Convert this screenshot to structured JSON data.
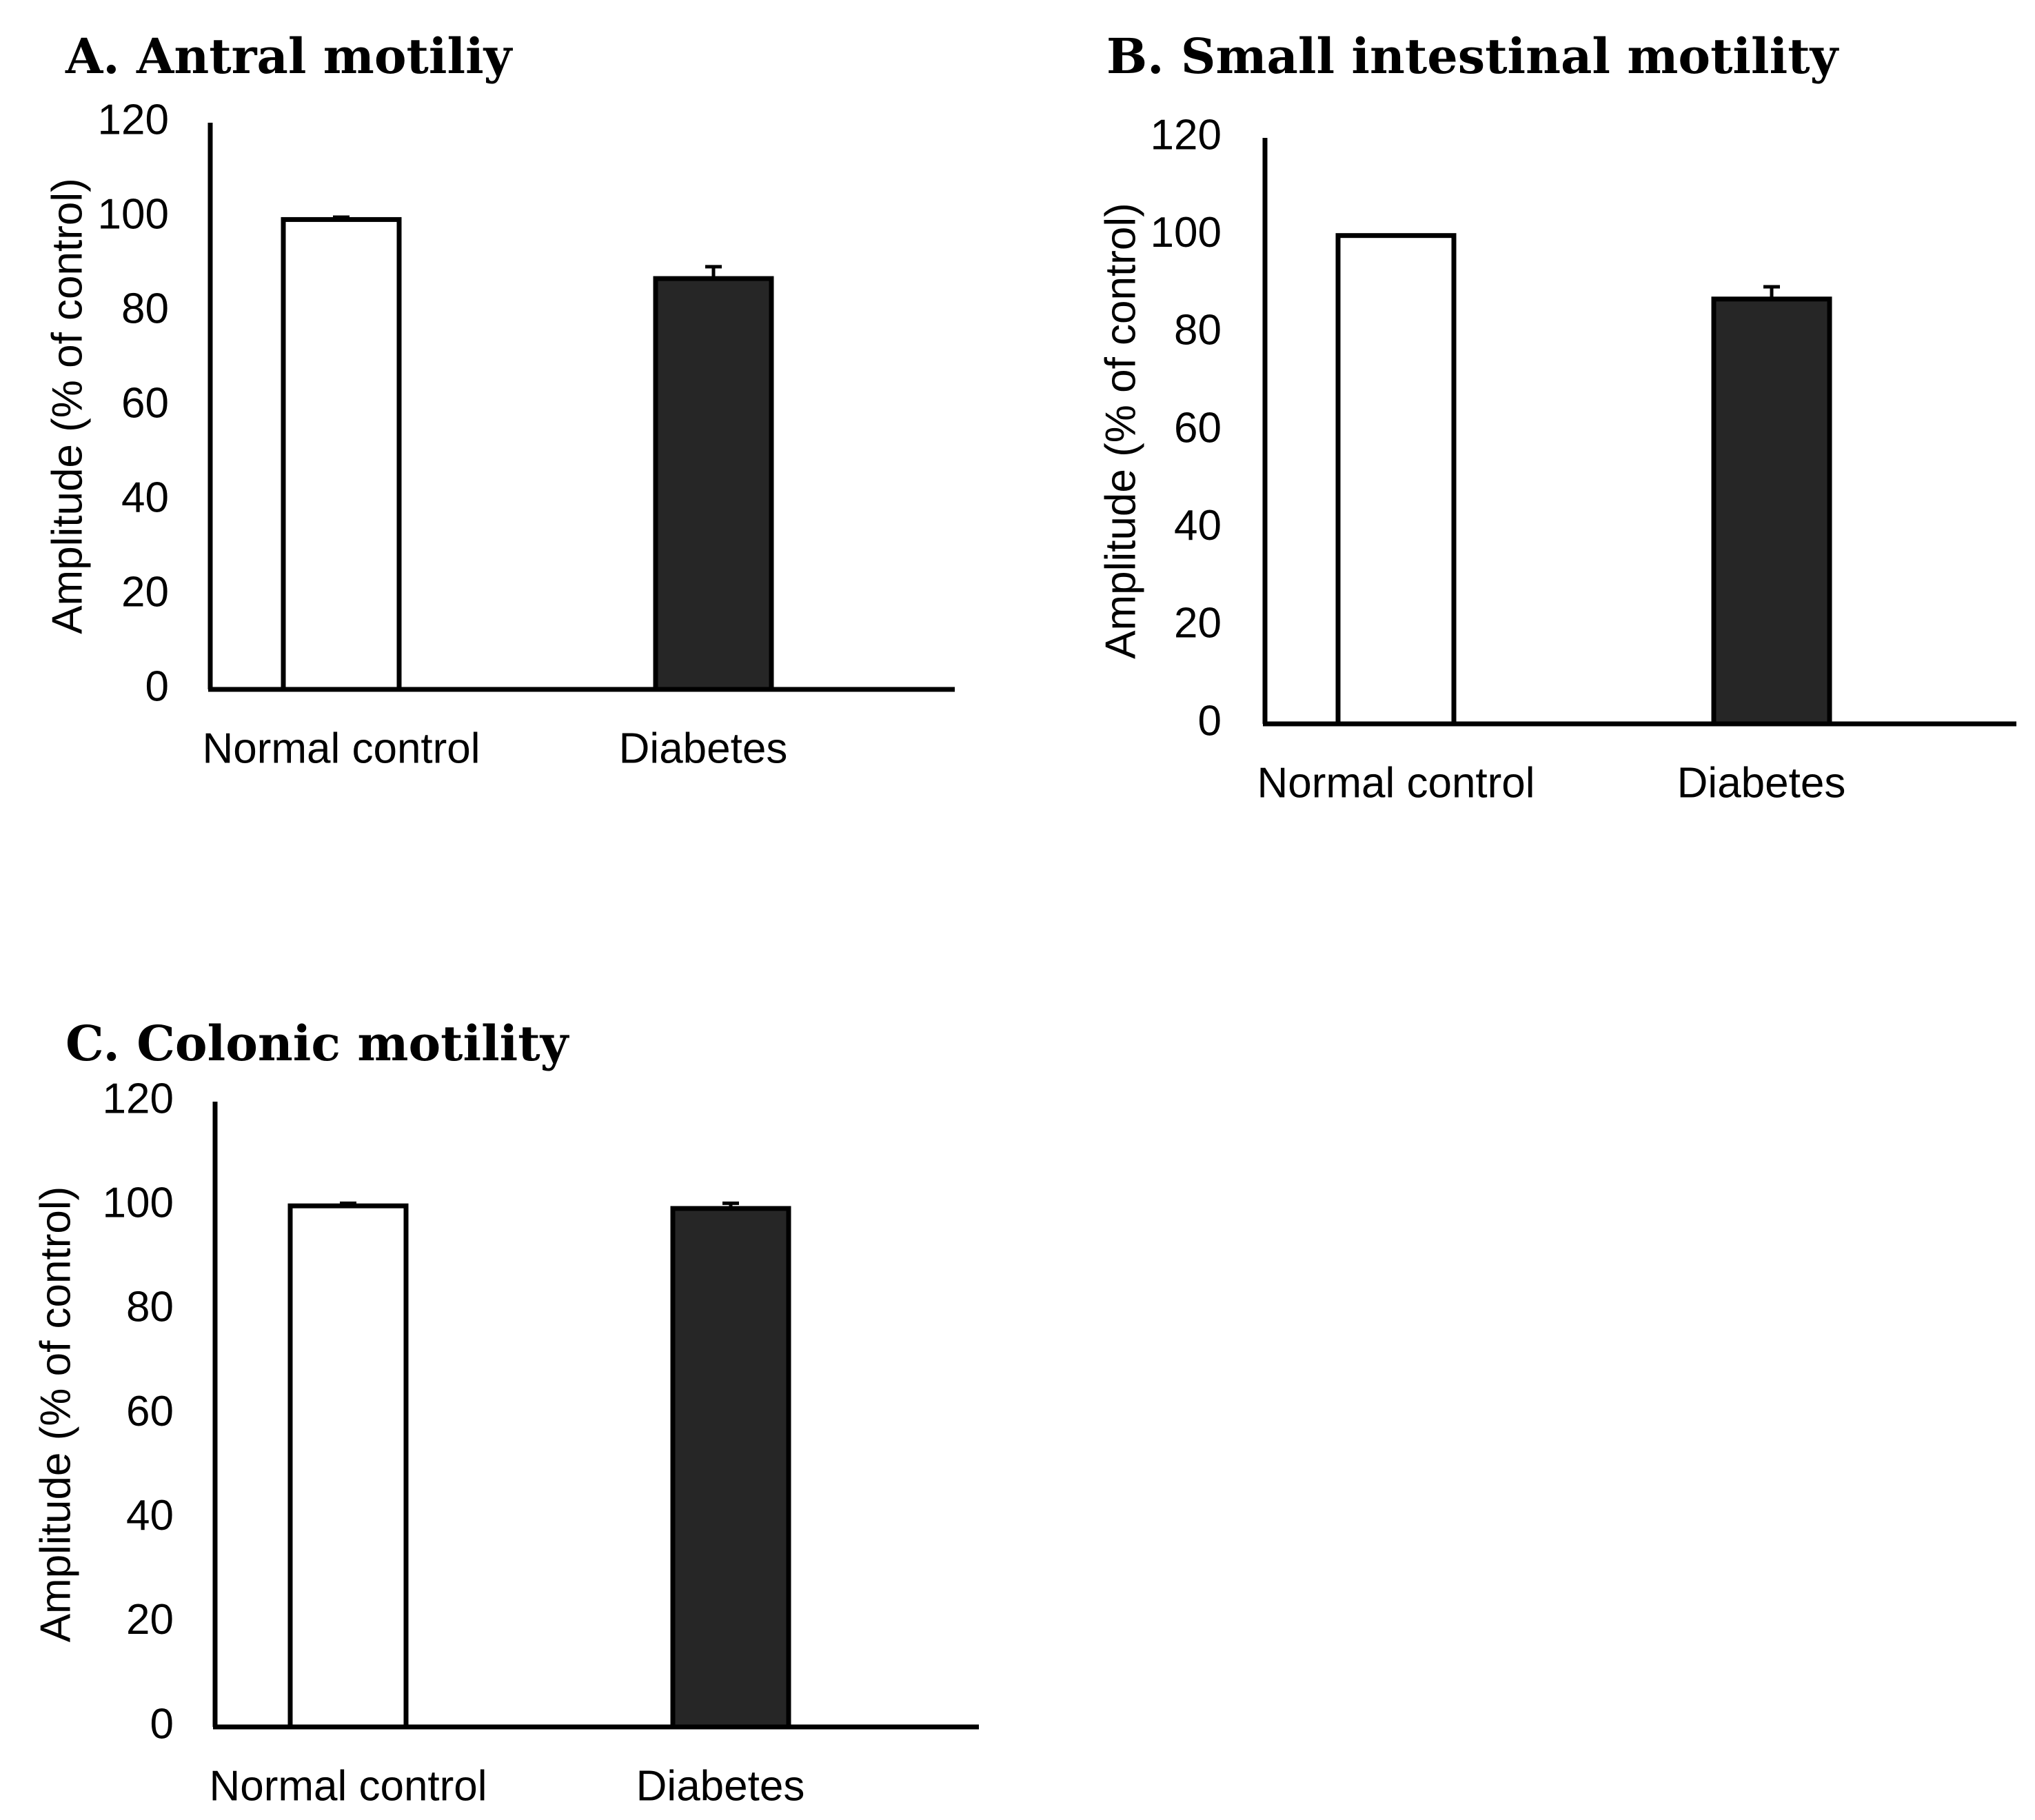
{
  "chart_data": [
    {
      "type": "bar",
      "title": "A. Antral motiliy",
      "ylabel": "Amplitude (% of control)",
      "xlabel": "",
      "ylim": [
        0,
        120
      ],
      "yticks": [
        0,
        20,
        40,
        60,
        80,
        100,
        120
      ],
      "grid": false,
      "categories": [
        "Normal control",
        "Diabetes"
      ],
      "values": [
        99.5,
        87
      ],
      "errors": [
        0.5,
        2.5
      ],
      "colors": [
        "#ffffff",
        "#262626"
      ]
    },
    {
      "type": "bar",
      "title": "B. Small intestinal motility",
      "ylabel": "Amplitude (% of control)",
      "xlabel": "",
      "ylim": [
        0,
        120
      ],
      "yticks": [
        0,
        20,
        40,
        60,
        80,
        100,
        120
      ],
      "grid": false,
      "categories": [
        "Normal control",
        "Diabetes"
      ],
      "values": [
        100,
        87
      ],
      "errors": [
        0,
        2.5
      ],
      "colors": [
        "#ffffff",
        "#262626"
      ]
    },
    {
      "type": "bar",
      "title": "C. Colonic motility",
      "ylabel": "Amplitude (% of control)",
      "xlabel": "",
      "ylim": [
        0,
        120
      ],
      "yticks": [
        0,
        20,
        40,
        60,
        80,
        100,
        120
      ],
      "grid": false,
      "categories": [
        "Normal control",
        "Diabetes"
      ],
      "values": [
        100,
        99.5
      ],
      "errors": [
        0.5,
        1
      ],
      "colors": [
        "#ffffff",
        "#262626"
      ]
    }
  ]
}
